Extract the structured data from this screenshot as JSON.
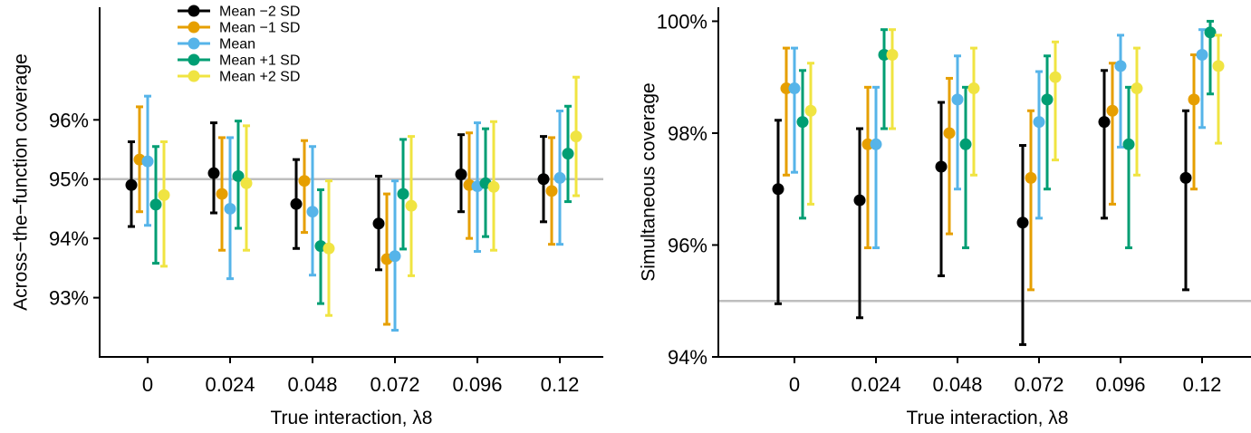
{
  "chart_data": [
    {
      "type": "scatter",
      "subtype": "point-with-errorbars",
      "xlabel": "True interaction, λ8",
      "ylabel": "Across−the−function coverage",
      "categories": [
        "0",
        "0.024",
        "0.048",
        "0.072",
        "0.096",
        "0.12"
      ],
      "y_ticks": [
        "93%",
        "94%",
        "95%",
        "96%"
      ],
      "y_tick_values": [
        93,
        94,
        95,
        96
      ],
      "ylim": [
        92.0,
        97.9
      ],
      "reference_line": 95,
      "legend": {
        "placement": "top-left"
      },
      "series": [
        {
          "name": "Mean −2 SD",
          "color": "#000000",
          "values": [
            94.9,
            95.1,
            94.58,
            94.25,
            95.08,
            95.0
          ],
          "lower": [
            94.2,
            94.43,
            93.83,
            93.47,
            94.45,
            94.28
          ],
          "upper": [
            95.63,
            95.95,
            95.33,
            95.05,
            95.75,
            95.72
          ]
        },
        {
          "name": "Mean −1 SD",
          "color": "#E69F00",
          "values": [
            95.33,
            94.75,
            94.97,
            93.65,
            94.9,
            94.8
          ],
          "lower": [
            94.45,
            93.8,
            94.1,
            92.55,
            94.0,
            93.9
          ],
          "upper": [
            96.22,
            95.7,
            95.65,
            94.75,
            95.78,
            95.7
          ]
        },
        {
          "name": "Mean",
          "color": "#56B4E9",
          "values": [
            95.3,
            94.5,
            94.45,
            93.7,
            94.88,
            95.02
          ],
          "lower": [
            94.22,
            93.32,
            93.38,
            92.45,
            93.78,
            93.9
          ],
          "upper": [
            96.4,
            95.7,
            95.55,
            94.97,
            95.95,
            96.15
          ]
        },
        {
          "name": "Mean +1 SD",
          "color": "#009E73",
          "values": [
            94.57,
            95.05,
            93.87,
            94.75,
            94.93,
            95.43
          ],
          "lower": [
            93.58,
            94.17,
            92.9,
            93.82,
            94.03,
            94.62
          ],
          "upper": [
            95.55,
            95.98,
            94.82,
            95.67,
            95.85,
            96.23
          ]
        },
        {
          "name": "Mean +2 SD",
          "color": "#F0E442",
          "values": [
            94.73,
            94.93,
            93.83,
            94.55,
            94.87,
            95.72
          ],
          "lower": [
            93.53,
            93.8,
            92.7,
            93.37,
            93.8,
            94.72
          ],
          "upper": [
            95.63,
            95.9,
            94.97,
            95.72,
            95.97,
            96.72
          ]
        }
      ]
    },
    {
      "type": "scatter",
      "subtype": "point-with-errorbars",
      "xlabel": "True interaction, λ8",
      "ylabel": "Simultaneous coverage",
      "categories": [
        "0",
        "0.024",
        "0.048",
        "0.072",
        "0.096",
        "0.12"
      ],
      "y_ticks": [
        "94%",
        "96%",
        "98%",
        "100%"
      ],
      "y_tick_values": [
        94,
        96,
        98,
        100
      ],
      "ylim": [
        94.0,
        100.25
      ],
      "reference_line": 95,
      "series": [
        {
          "name": "Mean −2 SD",
          "color": "#000000",
          "values": [
            97.0,
            96.8,
            97.4,
            96.4,
            98.2,
            97.2
          ],
          "lower": [
            94.95,
            94.7,
            95.45,
            94.22,
            96.48,
            95.2
          ],
          "upper": [
            98.23,
            98.08,
            98.55,
            97.78,
            99.12,
            98.4
          ]
        },
        {
          "name": "Mean −1 SD",
          "color": "#E69F00",
          "values": [
            98.8,
            97.8,
            98.0,
            97.2,
            98.4,
            98.6
          ],
          "lower": [
            97.25,
            95.95,
            96.2,
            95.2,
            96.73,
            97.0
          ],
          "upper": [
            99.52,
            98.82,
            98.98,
            98.4,
            99.25,
            99.4
          ]
        },
        {
          "name": "Mean",
          "color": "#56B4E9",
          "values": [
            98.8,
            97.8,
            98.6,
            98.2,
            99.2,
            99.4
          ],
          "lower": [
            97.3,
            95.95,
            97.0,
            96.48,
            97.75,
            98.1
          ],
          "upper": [
            99.52,
            98.82,
            99.38,
            99.1,
            99.75,
            99.85
          ]
        },
        {
          "name": "Mean +1 SD",
          "color": "#009E73",
          "values": [
            98.2,
            99.4,
            97.8,
            98.6,
            97.8,
            99.8
          ],
          "lower": [
            96.48,
            98.08,
            95.95,
            97.0,
            95.95,
            98.7
          ],
          "upper": [
            99.12,
            99.85,
            98.82,
            99.38,
            98.82,
            100.0
          ]
        },
        {
          "name": "Mean +2 SD",
          "color": "#F0E442",
          "values": [
            98.4,
            99.4,
            98.8,
            99.0,
            98.8,
            99.2
          ],
          "lower": [
            96.73,
            98.08,
            97.25,
            97.52,
            97.25,
            97.82
          ],
          "upper": [
            99.25,
            99.85,
            99.52,
            99.63,
            99.52,
            99.75
          ]
        }
      ]
    }
  ]
}
